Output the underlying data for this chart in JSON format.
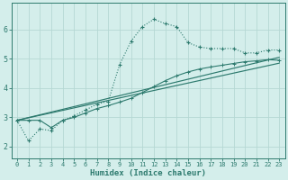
{
  "xlabel": "Humidex (Indice chaleur)",
  "ylabel_ticks": [
    2,
    3,
    4,
    5,
    6
  ],
  "xlim": [
    -0.5,
    23.5
  ],
  "ylim": [
    1.6,
    6.9
  ],
  "bg_color": "#d4eeeb",
  "line_color": "#2d7a6e",
  "grid_color": "#b5d8d4",
  "series1_x": [
    0,
    1,
    2,
    3,
    4,
    5,
    6,
    7,
    8,
    9,
    10,
    11,
    12,
    13,
    14,
    15,
    16,
    17,
    18,
    19,
    20,
    21,
    22,
    23
  ],
  "series1_y": [
    2.9,
    2.2,
    2.6,
    2.55,
    2.9,
    3.05,
    3.25,
    3.45,
    3.55,
    4.8,
    5.6,
    6.1,
    6.35,
    6.2,
    6.1,
    5.55,
    5.4,
    5.35,
    5.35,
    5.35,
    5.2,
    5.2,
    5.3,
    5.3
  ],
  "series2_x": [
    0,
    1,
    2,
    3,
    4,
    5,
    6,
    7,
    8,
    9,
    10,
    11,
    12,
    13,
    14,
    15,
    16,
    17,
    18,
    19,
    20,
    21,
    22,
    23
  ],
  "series2_y": [
    2.9,
    2.9,
    2.9,
    2.65,
    2.9,
    3.0,
    3.15,
    3.3,
    3.4,
    3.52,
    3.65,
    3.85,
    4.05,
    4.25,
    4.42,
    4.55,
    4.65,
    4.72,
    4.78,
    4.84,
    4.9,
    4.93,
    4.97,
    4.95
  ],
  "series3_x": [
    0,
    23
  ],
  "series3_y": [
    2.9,
    4.85
  ],
  "series4_x": [
    0,
    23
  ],
  "series4_y": [
    2.9,
    5.05
  ]
}
